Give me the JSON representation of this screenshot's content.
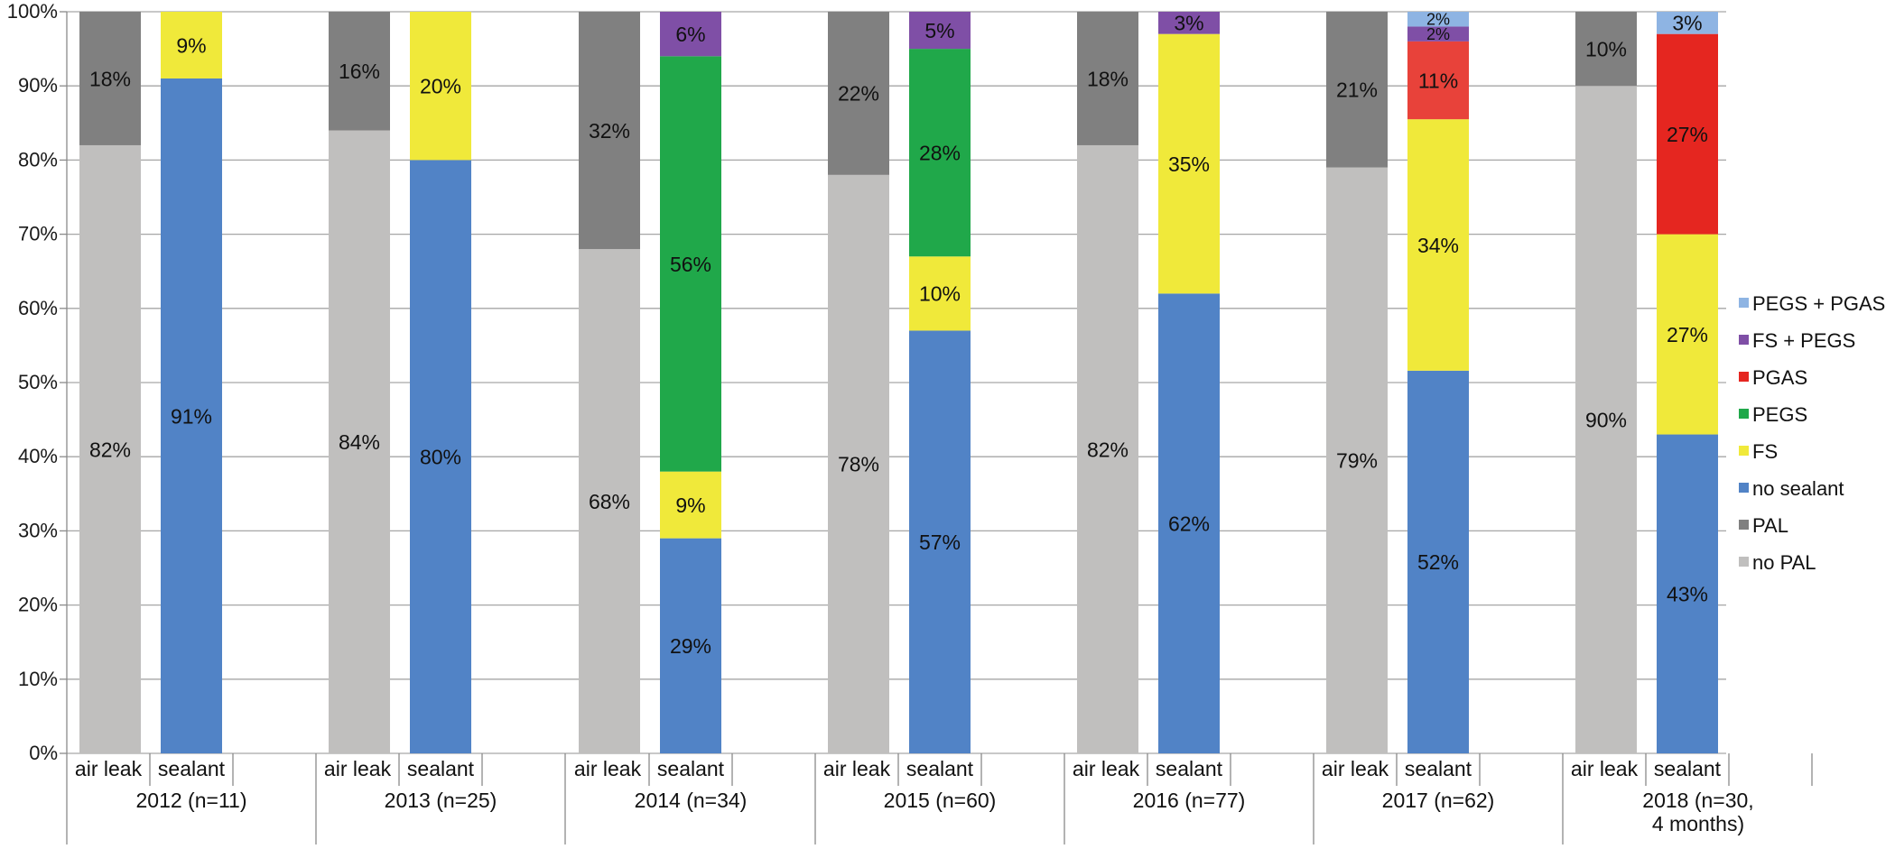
{
  "chart_data": {
    "type": "bar",
    "stacked": true,
    "title": "",
    "xlabel": "",
    "ylabel": "",
    "ylim": [
      0,
      100
    ],
    "y_ticks": [
      "0%",
      "10%",
      "20%",
      "30%",
      "40%",
      "50%",
      "60%",
      "70%",
      "80%",
      "90%",
      "100%"
    ],
    "grid": true,
    "legend_position": "right",
    "groups": [
      {
        "label": "2012 (n=11)",
        "bars": [
          {
            "label": "air leak",
            "segments": [
              {
                "series": "no PAL",
                "value": 82,
                "text": "82%"
              },
              {
                "series": "PAL",
                "value": 18,
                "text": "18%"
              }
            ]
          },
          {
            "label": "sealant",
            "segments": [
              {
                "series": "no sealant",
                "value": 91,
                "text": "91%"
              },
              {
                "series": "FS",
                "value": 9,
                "text": "9%"
              }
            ]
          }
        ]
      },
      {
        "label": "2013 (n=25)",
        "bars": [
          {
            "label": "air leak",
            "segments": [
              {
                "series": "no PAL",
                "value": 84,
                "text": "84%"
              },
              {
                "series": "PAL",
                "value": 16,
                "text": "16%"
              }
            ]
          },
          {
            "label": "sealant",
            "segments": [
              {
                "series": "no sealant",
                "value": 80,
                "text": "80%"
              },
              {
                "series": "FS",
                "value": 20,
                "text": "20%"
              }
            ]
          }
        ]
      },
      {
        "label": "2014 (n=34)",
        "bars": [
          {
            "label": "air leak",
            "segments": [
              {
                "series": "no PAL",
                "value": 68,
                "text": "68%"
              },
              {
                "series": "PAL",
                "value": 32,
                "text": "32%"
              }
            ]
          },
          {
            "label": "sealant",
            "segments": [
              {
                "series": "no sealant",
                "value": 29,
                "text": "29%"
              },
              {
                "series": "FS",
                "value": 9,
                "text": "9%"
              },
              {
                "series": "PEGS",
                "value": 56,
                "text": "56%"
              },
              {
                "series": "FS + PEGS",
                "value": 6,
                "text": "6%"
              }
            ]
          }
        ]
      },
      {
        "label": "2015 (n=60)",
        "bars": [
          {
            "label": "air leak",
            "segments": [
              {
                "series": "no PAL",
                "value": 78,
                "text": "78%"
              },
              {
                "series": "PAL",
                "value": 22,
                "text": "22%"
              }
            ]
          },
          {
            "label": "sealant",
            "segments": [
              {
                "series": "no sealant",
                "value": 57,
                "text": "57%"
              },
              {
                "series": "FS",
                "value": 10,
                "text": "10%"
              },
              {
                "series": "PEGS",
                "value": 28,
                "text": "28%"
              },
              {
                "series": "FS + PEGS",
                "value": 5,
                "text": "5%"
              }
            ]
          }
        ]
      },
      {
        "label": "2016 (n=77)",
        "bars": [
          {
            "label": "air leak",
            "segments": [
              {
                "series": "no PAL",
                "value": 82,
                "text": "82%"
              },
              {
                "series": "PAL",
                "value": 18,
                "text": "18%"
              }
            ]
          },
          {
            "label": "sealant",
            "segments": [
              {
                "series": "no sealant",
                "value": 62,
                "text": "62%"
              },
              {
                "series": "FS",
                "value": 35,
                "text": "35%"
              },
              {
                "series": "FS + PEGS",
                "value": 3,
                "text": "3%"
              }
            ]
          }
        ]
      },
      {
        "label": "2017 (n=62)",
        "bars": [
          {
            "label": "air leak",
            "segments": [
              {
                "series": "no PAL",
                "value": 79,
                "text": "79%"
              },
              {
                "series": "PAL",
                "value": 21,
                "text": "21%"
              }
            ]
          },
          {
            "label": "sealant",
            "segments": [
              {
                "series": "no sealant",
                "value": 51.6,
                "text": "52%"
              },
              {
                "series": "FS",
                "value": 33.9,
                "text": "34%"
              },
              {
                "series": "PGAS",
                "value": 10.5,
                "text": "11%"
              },
              {
                "series": "FS + PEGS",
                "value": 2,
                "text": "2%"
              },
              {
                "series": "PEGS + PGAS",
                "value": 2,
                "text": "2%"
              }
            ]
          }
        ]
      },
      {
        "label": "2018 (n=30,\n4 months)",
        "bars": [
          {
            "label": "air leak",
            "segments": [
              {
                "series": "no PAL",
                "value": 90,
                "text": "90%"
              },
              {
                "series": "PAL",
                "value": 10,
                "text": "10%"
              }
            ]
          },
          {
            "label": "sealant",
            "segments": [
              {
                "series": "no sealant",
                "value": 43,
                "text": "43%"
              },
              {
                "series": "FS",
                "value": 27,
                "text": "27%"
              },
              {
                "series": "PGAS",
                "value": 27,
                "text": "27%"
              },
              {
                "series": "PEGS + PGAS",
                "value": 3,
                "text": "3%"
              }
            ]
          }
        ]
      }
    ],
    "series": [
      {
        "name": "PEGS + PGAS",
        "color": "#8EB4E3"
      },
      {
        "name": "FS + PEGS",
        "color": "#7F4FA6"
      },
      {
        "name": "PGAS",
        "color": "#E52620"
      },
      {
        "name": "PEGS",
        "color": "#20A84A"
      },
      {
        "name": "FS",
        "color": "#F0E93A"
      },
      {
        "name": "no sealant",
        "color": "#5183C6"
      },
      {
        "name": "PAL",
        "color": "#808080"
      },
      {
        "name": "no PAL",
        "color": "#C0BFBE"
      }
    ],
    "segment_overrides": [
      {
        "group": 5,
        "series": "PGAS",
        "color": "#E8423A"
      }
    ]
  }
}
